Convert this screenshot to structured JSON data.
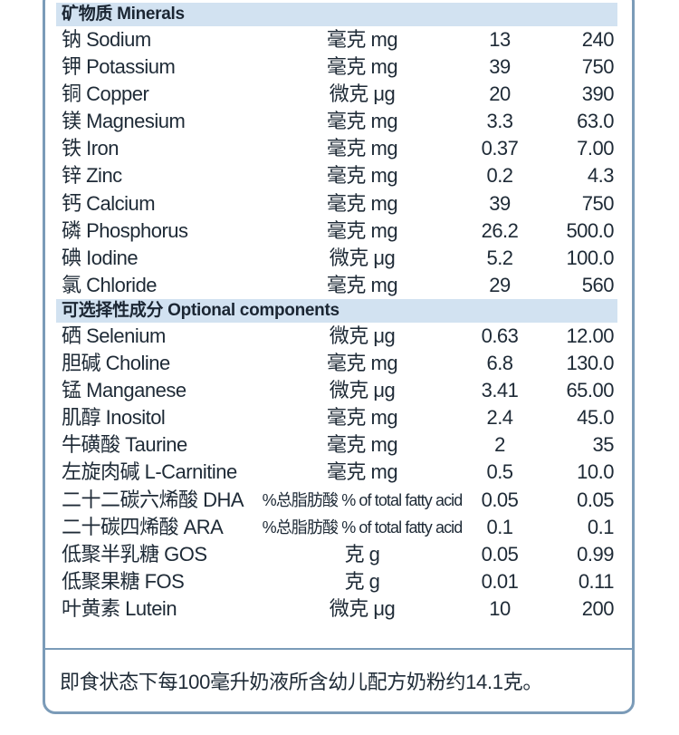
{
  "sections": [
    {
      "title": "矿物质 Minerals",
      "rows": [
        {
          "name": "钠 Sodium",
          "unit": "毫克 mg",
          "per100kj": "13",
          "per100g": "240"
        },
        {
          "name": "钾 Potassium",
          "unit": "毫克 mg",
          "per100kj": "39",
          "per100g": "750"
        },
        {
          "name": "铜 Copper",
          "unit": "微克 μg",
          "per100kj": "20",
          "per100g": "390"
        },
        {
          "name": "镁 Magnesium",
          "unit": "毫克 mg",
          "per100kj": "3.3",
          "per100g": "63.0"
        },
        {
          "name": "铁 Iron",
          "unit": "毫克 mg",
          "per100kj": "0.37",
          "per100g": "7.00"
        },
        {
          "name": "锌 Zinc",
          "unit": "毫克 mg",
          "per100kj": "0.2",
          "per100g": "4.3"
        },
        {
          "name": "钙 Calcium",
          "unit": "毫克 mg",
          "per100kj": "39",
          "per100g": "750"
        },
        {
          "name": "磷 Phosphorus",
          "unit": "毫克 mg",
          "per100kj": "26.2",
          "per100g": "500.0"
        },
        {
          "name": "碘 Iodine",
          "unit": "微克 μg",
          "per100kj": "5.2",
          "per100g": "100.0"
        },
        {
          "name": "氯 Chloride",
          "unit": "毫克 mg",
          "per100kj": "29",
          "per100g": "560"
        }
      ]
    },
    {
      "title": "可选择性成分 Optional components",
      "rows": [
        {
          "name": "硒 Selenium",
          "unit": "微克 μg",
          "per100kj": "0.63",
          "per100g": "12.00"
        },
        {
          "name": "胆碱 Choline",
          "unit": "毫克 mg",
          "per100kj": "6.8",
          "per100g": "130.0"
        },
        {
          "name": "锰 Manganese",
          "unit": "微克 μg",
          "per100kj": "3.41",
          "per100g": "65.00"
        },
        {
          "name": "肌醇 Inositol",
          "unit": "毫克 mg",
          "per100kj": "2.4",
          "per100g": "45.0"
        },
        {
          "name": "牛磺酸 Taurine",
          "unit": "毫克 mg",
          "per100kj": "2",
          "per100g": "35"
        },
        {
          "name": "左旋肉碱 L-Carnitine",
          "unit": "毫克 mg",
          "per100kj": "0.5",
          "per100g": "10.0"
        },
        {
          "name": "二十二碳六烯酸 DHA",
          "unit": "%总脂肪酸 % of total fatty acid",
          "per100kj": "0.05",
          "per100g": "0.05"
        },
        {
          "name": "二十碳四烯酸 ARA",
          "unit": "%总脂肪酸 % of total fatty acid",
          "per100kj": "0.1",
          "per100g": "0.1"
        },
        {
          "name": "低聚半乳糖 GOS",
          "unit": "克 g",
          "per100kj": "0.05",
          "per100g": "0.99"
        },
        {
          "name": "低聚果糖 FOS",
          "unit": "克 g",
          "per100kj": "0.01",
          "per100g": "0.11"
        },
        {
          "name": "叶黄素 Lutein",
          "unit": "微克 μg",
          "per100kj": "10",
          "per100g": "200"
        }
      ]
    }
  ],
  "footnote": "即食状态下每100毫升奶液所含幼儿配方奶粉约14.1克。",
  "colors": {
    "border": "#7b9bb8",
    "header_bg": "#d2e2f1",
    "text": "#1e2a36"
  }
}
